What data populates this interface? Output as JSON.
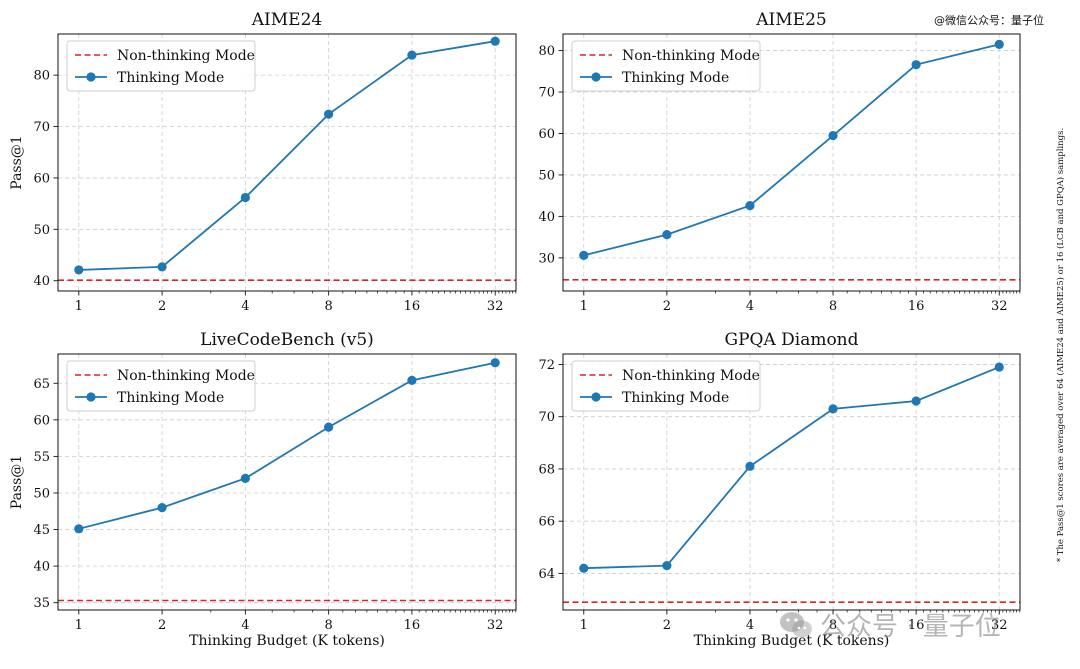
{
  "watermark_top": "@微信公众号：量子位",
  "side_note": "* The Pass@1 scores are averaged over 64 (AIME24 and AIME25) or 16 (LCB and GPQA) samplings.",
  "watermark_bottom": "公众号 · 量子位",
  "colors": {
    "thinking": "#1f77b4",
    "nonthinking": "#d62728",
    "grid": "#cccccc"
  },
  "chart_data": [
    {
      "type": "line",
      "title": "AIME24",
      "xlabel": "",
      "ylabel": "Pass@1",
      "x": [
        1,
        2,
        4,
        8,
        16,
        32
      ],
      "x_ticks": [
        "1",
        "2",
        "4",
        "8",
        "16",
        "32"
      ],
      "x_scale": "log2",
      "ylim": [
        38,
        88
      ],
      "y_ticks": [
        40,
        50,
        60,
        70,
        80
      ],
      "grid": true,
      "legend": "top-left",
      "baseline": {
        "name": "Non-thinking Mode",
        "value": 40.1
      },
      "series": [
        {
          "name": "Thinking Mode",
          "values": [
            42.1,
            42.7,
            56.2,
            72.4,
            83.9,
            86.6
          ]
        }
      ]
    },
    {
      "type": "line",
      "title": "AIME25",
      "xlabel": "",
      "ylabel": "",
      "x": [
        1,
        2,
        4,
        8,
        16,
        32
      ],
      "x_ticks": [
        "1",
        "2",
        "4",
        "8",
        "16",
        "32"
      ],
      "x_scale": "log2",
      "ylim": [
        22,
        84
      ],
      "y_ticks": [
        30,
        40,
        50,
        60,
        70,
        80
      ],
      "grid": true,
      "legend": "top-left",
      "baseline": {
        "name": "Non-thinking Mode",
        "value": 24.7
      },
      "series": [
        {
          "name": "Thinking Mode",
          "values": [
            30.6,
            35.6,
            42.6,
            59.5,
            76.6,
            81.5
          ]
        }
      ]
    },
    {
      "type": "line",
      "title": "LiveCodeBench (v5)",
      "xlabel": "Thinking Budget (K tokens)",
      "ylabel": "Pass@1",
      "x": [
        1,
        2,
        4,
        8,
        16,
        32
      ],
      "x_ticks": [
        "1",
        "2",
        "4",
        "8",
        "16",
        "32"
      ],
      "x_scale": "log2",
      "ylim": [
        34,
        69
      ],
      "y_ticks": [
        35,
        40,
        45,
        50,
        55,
        60,
        65
      ],
      "grid": true,
      "legend": "top-left",
      "baseline": {
        "name": "Non-thinking Mode",
        "value": 35.3
      },
      "series": [
        {
          "name": "Thinking Mode",
          "values": [
            45.1,
            48.0,
            52.0,
            59.0,
            65.4,
            67.8
          ]
        }
      ]
    },
    {
      "type": "line",
      "title": "GPQA Diamond",
      "xlabel": "Thinking Budget (K tokens)",
      "ylabel": "",
      "x": [
        1,
        2,
        4,
        8,
        16,
        32
      ],
      "x_ticks": [
        "1",
        "2",
        "4",
        "8",
        "16",
        "32"
      ],
      "x_scale": "log2",
      "ylim": [
        62.6,
        72.4
      ],
      "y_ticks": [
        64,
        66,
        68,
        70,
        72
      ],
      "grid": true,
      "legend": "top-left",
      "baseline": {
        "name": "Non-thinking Mode",
        "value": 62.9
      },
      "series": [
        {
          "name": "Thinking Mode",
          "values": [
            64.2,
            64.3,
            68.1,
            70.3,
            70.6,
            71.9
          ]
        }
      ]
    }
  ]
}
